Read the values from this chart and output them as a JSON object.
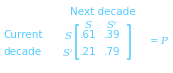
{
  "title": "Next decade",
  "col_header_S": "$S$",
  "col_header_Sp": "$S'$",
  "row_header_S": "$S$",
  "row_header_Sp": "$S'$",
  "left_label_line1": "Current",
  "left_label_line2": "decade",
  "matrix": [
    [
      ".61",
      ".39"
    ],
    [
      ".21",
      ".79"
    ]
  ],
  "equals_P": "$= P$",
  "text_color": "#55ccff",
  "background_color": "#ffffff",
  "title_fontsize": 7.5,
  "header_fontsize": 7.5,
  "matrix_fontsize": 7.5,
  "label_fontsize": 7.5,
  "bracket_lw": 1.1
}
